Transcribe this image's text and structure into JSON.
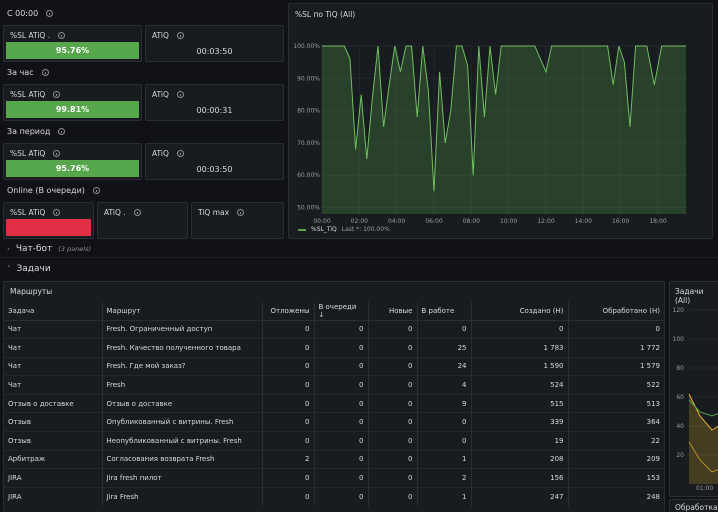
{
  "stats": {
    "since_title": "С 00:00",
    "hour_title": "За час",
    "period_title": "За период",
    "online_title": "Online (В очереди)",
    "since": {
      "sl_label": "%SL ATiQ .",
      "sl_value": "95.76%",
      "atiq_label": "ATiQ",
      "atiq_value": "00:03:50"
    },
    "hour": {
      "sl_label": "%SL ATiQ",
      "sl_value": "99.81%",
      "atiq_label": "ATiQ",
      "atiq_value": "00:00:31"
    },
    "period": {
      "sl_label": "%SL ATiQ",
      "sl_value": "95.76%",
      "atiq_label": "ATiQ",
      "atiq_value": "00:03:50"
    },
    "online": {
      "sl_label": "%SL ATiQ",
      "atiq_label": "ATiQ .",
      "tiq_max_label": "TiQ max"
    }
  },
  "sl_chart": {
    "title": "%SL по TiQ (All)",
    "legend_label": "%SL_TiQ",
    "legend_last": "Last *: 100.00%"
  },
  "chart_data": {
    "type": "line",
    "title": "%SL по TiQ (All)",
    "xlabel": "",
    "ylabel": "",
    "x_ticks": [
      "00:00",
      "02:00",
      "04:00",
      "06:00",
      "08:00",
      "10:00",
      "12:00",
      "14:00",
      "16:00",
      "18:00"
    ],
    "y_ticks": [
      "50.00%",
      "60.00%",
      "70.00%",
      "80.00%",
      "90.00%",
      "100.00%"
    ],
    "ylim": [
      48,
      100
    ],
    "xlim": [
      0,
      19.5
    ],
    "grid": true,
    "series": [
      {
        "name": "%SL_TiQ",
        "x": [
          0,
          0.3,
          0.6,
          0.9,
          1.2,
          1.5,
          1.8,
          2.1,
          2.4,
          2.7,
          3.0,
          3.3,
          3.6,
          3.9,
          4.2,
          4.5,
          4.8,
          5.1,
          5.4,
          5.7,
          6.0,
          6.3,
          6.6,
          6.9,
          7.2,
          7.5,
          7.8,
          8.1,
          8.4,
          8.7,
          9.0,
          9.3,
          9.6,
          9.9,
          10.2,
          10.5,
          10.8,
          11.1,
          11.4,
          11.7,
          12.0,
          12.3,
          12.6,
          12.9,
          13.2,
          13.5,
          13.8,
          14.1,
          14.4,
          14.7,
          15.0,
          15.3,
          15.6,
          15.9,
          16.2,
          16.5,
          16.8,
          17.1,
          17.4,
          17.8,
          18.2,
          18.6,
          19.0,
          19.5
        ],
        "y": [
          100,
          100,
          100,
          100,
          100,
          96,
          68,
          85,
          65,
          84,
          100,
          75,
          88,
          100,
          92,
          100,
          100,
          78,
          100,
          86,
          55,
          92,
          70,
          80,
          100,
          100,
          94,
          60,
          100,
          78,
          100,
          85,
          100,
          100,
          100,
          100,
          100,
          100,
          100,
          96,
          92,
          100,
          100,
          100,
          100,
          100,
          100,
          100,
          100,
          100,
          100,
          100,
          88,
          100,
          95,
          75,
          100,
          100,
          100,
          88,
          100,
          100,
          100,
          100
        ]
      }
    ]
  },
  "rows": {
    "chatbot_label": "Чат-бот",
    "chatbot_count": "(3 panels)",
    "tasks_label": "Задачи"
  },
  "routes": {
    "title": "Маршруты",
    "columns": [
      "Задача",
      "Маршрут",
      "Отложены",
      "В очереди ↓",
      "Новые",
      "В работе",
      "Создано (Н)",
      "Обработано (Н)"
    ],
    "rows": [
      [
        "Чат",
        "Fresh. Ограниченный доступ",
        "0",
        "0",
        "0",
        "0",
        "0",
        "0"
      ],
      [
        "Чат",
        "Fresh. Качество полученного товара",
        "0",
        "0",
        "0",
        "25",
        "1 783",
        "1 772"
      ],
      [
        "Чат",
        "Fresh. Где мой заказ?",
        "0",
        "0",
        "0",
        "24",
        "1 590",
        "1 579"
      ],
      [
        "Чат",
        "Fresh",
        "0",
        "0",
        "0",
        "4",
        "524",
        "522"
      ],
      [
        "Отзыв о доставке",
        "Отзыв о доставке",
        "0",
        "0",
        "0",
        "9",
        "515",
        "513"
      ],
      [
        "Отзыв",
        "Опубликованный с витрины. Fresh",
        "0",
        "0",
        "0",
        "0",
        "339",
        "364"
      ],
      [
        "Отзыв",
        "Неопубликованный с витрины. Fresh",
        "0",
        "0",
        "0",
        "0",
        "19",
        "22"
      ],
      [
        "Арбитраж",
        "Согласования возврата Fresh",
        "2",
        "0",
        "0",
        "1",
        "208",
        "209"
      ],
      [
        "JIRA",
        "Jira fresh пилот",
        "0",
        "0",
        "0",
        "2",
        "156",
        "153"
      ],
      [
        "JIRA",
        "Jira Fresh",
        "0",
        "0",
        "0",
        "1",
        "247",
        "248"
      ]
    ]
  },
  "tasks_chart": {
    "title": "Задачи (All)",
    "y_ticks": [
      "120",
      "100",
      "80",
      "60",
      "40",
      "20"
    ],
    "x_tick": "01:00"
  },
  "processing_panel": {
    "title": "Обработка"
  },
  "colors": {
    "green": "#56a64b",
    "red": "#e02f44",
    "background": "#111217",
    "panel": "#181b1f"
  }
}
